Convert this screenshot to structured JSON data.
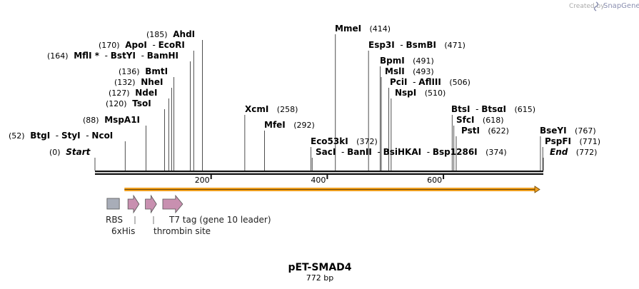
{
  "credit": {
    "prefix": "Created by",
    "brand": "SnapGene"
  },
  "plasmid": {
    "name": "pET-SMAD4",
    "size_label": "772 bp",
    "length": 772
  },
  "axis": {
    "ticks": [
      {
        "value": 200,
        "label": "200"
      },
      {
        "value": 400,
        "label": "400"
      },
      {
        "value": 600,
        "label": "600"
      }
    ]
  },
  "sites": [
    {
      "name": "Start",
      "pos": 0,
      "italic": true
    },
    {
      "name": "BtgI",
      "pos": 52
    },
    {
      "name": "StyI",
      "pos": 52
    },
    {
      "name": "NcoI",
      "pos": 52
    },
    {
      "name": "MspA1I",
      "pos": 88
    },
    {
      "name": "TsoI",
      "pos": 120
    },
    {
      "name": "NdeI",
      "pos": 127
    },
    {
      "name": "NheI",
      "pos": 132
    },
    {
      "name": "BmtI",
      "pos": 136
    },
    {
      "name": "MflI",
      "pos": 164,
      "star": true
    },
    {
      "name": "BstYI",
      "pos": 164
    },
    {
      "name": "BamHI",
      "pos": 164
    },
    {
      "name": "ApoI",
      "pos": 170
    },
    {
      "name": "EcoRI",
      "pos": 170
    },
    {
      "name": "AhdI",
      "pos": 185
    },
    {
      "name": "XcmI",
      "pos": 258
    },
    {
      "name": "MfeI",
      "pos": 292
    },
    {
      "name": "Eco53kI",
      "pos": 372
    },
    {
      "name": "SacI",
      "pos": 374
    },
    {
      "name": "BanII",
      "pos": 374
    },
    {
      "name": "BsiHKAI",
      "pos": 374
    },
    {
      "name": "Bsp1286I",
      "pos": 374
    },
    {
      "name": "MmeI",
      "pos": 414
    },
    {
      "name": "Esp3I",
      "pos": 471
    },
    {
      "name": "BsmBI",
      "pos": 471
    },
    {
      "name": "BpmI",
      "pos": 491
    },
    {
      "name": "MslI",
      "pos": 493
    },
    {
      "name": "PciI",
      "pos": 506
    },
    {
      "name": "AflIII",
      "pos": 506
    },
    {
      "name": "NspI",
      "pos": 510
    },
    {
      "name": "BtsI",
      "pos": 615
    },
    {
      "name": "BtsαI",
      "pos": 615
    },
    {
      "name": "SfcI",
      "pos": 618
    },
    {
      "name": "PstI",
      "pos": 622
    },
    {
      "name": "BseYI",
      "pos": 767
    },
    {
      "name": "PspFI",
      "pos": 771
    },
    {
      "name": "End",
      "pos": 772,
      "italic": true
    }
  ],
  "site_labels": [
    {
      "pos_text": "(185)",
      "names": [
        "AhdI"
      ],
      "pos": 185
    },
    {
      "pos_text": "(170)",
      "names": [
        "ApoI",
        "EcoRI"
      ],
      "pos": 170
    },
    {
      "pos_text": "(164)",
      "names": [
        "MflI *",
        "BstYI",
        "BamHI"
      ],
      "pos": 164
    },
    {
      "pos_text": "(136)",
      "names": [
        "BmtI"
      ],
      "pos": 136
    },
    {
      "pos_text": "(132)",
      "names": [
        "NheI"
      ],
      "pos": 132
    },
    {
      "pos_text": "(127)",
      "names": [
        "NdeI"
      ],
      "pos": 127
    },
    {
      "pos_text": "(120)",
      "names": [
        "TsoI"
      ],
      "pos": 120
    },
    {
      "pos_text": "(88)",
      "names": [
        "MspA1I"
      ],
      "pos": 88
    },
    {
      "pos_text": "(52)",
      "names": [
        "BtgI",
        "StyI",
        "NcoI"
      ],
      "pos": 52
    },
    {
      "pos_text": "(0)",
      "names": [
        "Start"
      ],
      "pos": 0,
      "italic": true
    },
    {
      "pos_text": "(258)",
      "names": [
        "XcmI"
      ],
      "pos": 258,
      "after": true
    },
    {
      "pos_text": "(292)",
      "names": [
        "MfeI"
      ],
      "pos": 292,
      "after": true
    },
    {
      "pos_text": "(414)",
      "names": [
        "MmeI"
      ],
      "pos": 414,
      "after": true
    },
    {
      "pos_text": "(372)",
      "names": [
        "Eco53kI"
      ],
      "pos": 372,
      "after": true
    },
    {
      "pos_text": "(374)",
      "names": [
        "SacI",
        "BanII",
        "BsiHKAI",
        "Bsp1286I"
      ],
      "pos": 374,
      "after": true
    },
    {
      "pos_text": "(471)",
      "names": [
        "Esp3I",
        "BsmBI"
      ],
      "pos": 471,
      "after": true
    },
    {
      "pos_text": "(491)",
      "names": [
        "BpmI"
      ],
      "pos": 491,
      "after": true
    },
    {
      "pos_text": "(493)",
      "names": [
        "MslI"
      ],
      "pos": 493,
      "after": true
    },
    {
      "pos_text": "(506)",
      "names": [
        "PciI",
        "AflIII"
      ],
      "pos": 506,
      "after": true
    },
    {
      "pos_text": "(510)",
      "names": [
        "NspI"
      ],
      "pos": 510,
      "after": true
    },
    {
      "pos_text": "(615)",
      "names": [
        "BtsI",
        "BtsαI"
      ],
      "pos": 615,
      "after": true
    },
    {
      "pos_text": "(618)",
      "names": [
        "SfcI"
      ],
      "pos": 618,
      "after": true
    },
    {
      "pos_text": "(622)",
      "names": [
        "PstI"
      ],
      "pos": 622,
      "after": true
    },
    {
      "pos_text": "(767)",
      "names": [
        "BseYI"
      ],
      "pos": 767,
      "after": true
    },
    {
      "pos_text": "(771)",
      "names": [
        "PspFI"
      ],
      "pos": 771,
      "after": true
    },
    {
      "pos_text": "(772)",
      "names": [
        "End"
      ],
      "pos": 772,
      "after": true,
      "italic": true
    }
  ],
  "orf": {
    "start": 52,
    "end": 772,
    "color": "#f0a020"
  },
  "features": [
    {
      "label": "RBS",
      "type": "box",
      "start": 22,
      "end": 42,
      "color": "#a8adb8"
    },
    {
      "label": "6xHis",
      "type": "arrow",
      "start": 58,
      "end": 76,
      "color": "#c890b0"
    },
    {
      "label": "thrombin site",
      "type": "arrow",
      "start": 88,
      "end": 106,
      "color": "#c890b0"
    },
    {
      "label": "T7 tag (gene 10 leader)",
      "type": "arrow",
      "start": 118,
      "end": 151,
      "color": "#c890b0"
    }
  ]
}
